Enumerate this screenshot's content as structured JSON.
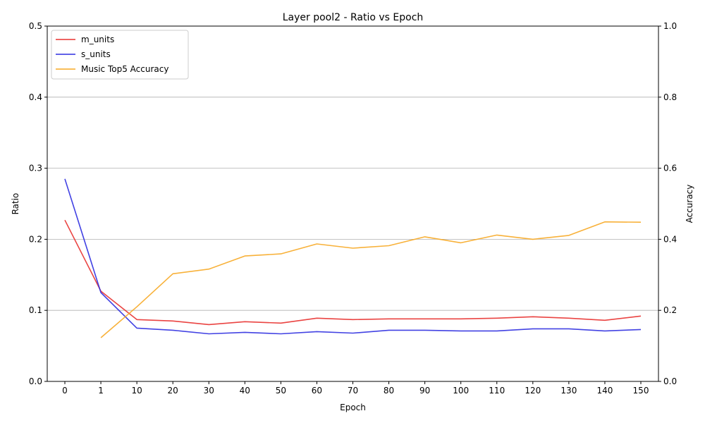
{
  "chart_data": {
    "type": "line",
    "title": "Layer pool2 - Ratio vs Epoch",
    "xlabel": "Epoch",
    "ylabel": "Ratio",
    "y2label": "Accuracy",
    "categories": [
      "0",
      "1",
      "10",
      "20",
      "30",
      "40",
      "50",
      "60",
      "70",
      "80",
      "90",
      "100",
      "110",
      "120",
      "130",
      "140",
      "150"
    ],
    "ylim": [
      0,
      0.5
    ],
    "y2lim": [
      0,
      1.0
    ],
    "yticks": [
      "0.0",
      "0.1",
      "0.2",
      "0.3",
      "0.4",
      "0.5"
    ],
    "y2ticks": [
      "0.0",
      "0.2",
      "0.4",
      "0.6",
      "0.8",
      "1.0"
    ],
    "grid": "horizontal",
    "legend_position": "top-left",
    "series": [
      {
        "name": "m_units",
        "axis": "left",
        "color": "#e8302e",
        "values": [
          0.227,
          0.127,
          0.087,
          0.085,
          0.08,
          0.084,
          0.082,
          0.089,
          0.087,
          0.088,
          0.088,
          0.088,
          0.089,
          0.091,
          0.089,
          0.086,
          0.092
        ]
      },
      {
        "name": "s_units",
        "axis": "left",
        "color": "#2e2ee0",
        "values": [
          0.285,
          0.125,
          0.075,
          0.072,
          0.067,
          0.069,
          0.067,
          0.07,
          0.068,
          0.072,
          0.072,
          0.071,
          0.071,
          0.074,
          0.074,
          0.071,
          0.073
        ]
      },
      {
        "name": "Music Top5 Accuracy",
        "axis": "right",
        "color": "#f7a823",
        "values": [
          null,
          0.123,
          0.21,
          0.303,
          0.316,
          0.353,
          0.359,
          0.387,
          0.375,
          0.382,
          0.407,
          0.39,
          0.412,
          0.4,
          0.411,
          0.449,
          0.448
        ]
      }
    ]
  }
}
